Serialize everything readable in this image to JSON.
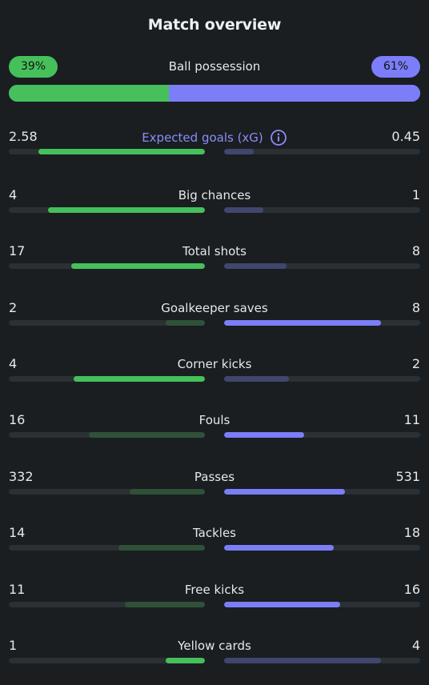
{
  "title": "Match overview",
  "possession": {
    "label": "Ball possession",
    "home_text": "39%",
    "away_text": "61%",
    "home_pct": 39,
    "away_pct": 61
  },
  "colors": {
    "home": "#46c05a",
    "away": "#7b7ef8"
  },
  "stats": [
    {
      "label": "Expected goals (xG)",
      "home": "2.58",
      "away": "0.45",
      "home_fill": 0.85,
      "away_fill": 0.15,
      "highlight": "home",
      "link": true,
      "icon": "info-icon"
    },
    {
      "label": "Big chances",
      "home": "4",
      "away": "1",
      "home_fill": 0.8,
      "away_fill": 0.2,
      "highlight": "home"
    },
    {
      "label": "Total shots",
      "home": "17",
      "away": "8",
      "home_fill": 0.68,
      "away_fill": 0.32,
      "highlight": "home"
    },
    {
      "label": "Goalkeeper saves",
      "home": "2",
      "away": "8",
      "home_fill": 0.2,
      "away_fill": 0.8,
      "highlight": "away"
    },
    {
      "label": "Corner kicks",
      "home": "4",
      "away": "2",
      "home_fill": 0.67,
      "away_fill": 0.33,
      "highlight": "home"
    },
    {
      "label": "Fouls",
      "home": "16",
      "away": "11",
      "home_fill": 0.59,
      "away_fill": 0.41,
      "highlight": "away"
    },
    {
      "label": "Passes",
      "home": "332",
      "away": "531",
      "home_fill": 0.385,
      "away_fill": 0.615,
      "highlight": "away"
    },
    {
      "label": "Tackles",
      "home": "14",
      "away": "18",
      "home_fill": 0.44,
      "away_fill": 0.56,
      "highlight": "away"
    },
    {
      "label": "Free kicks",
      "home": "11",
      "away": "16",
      "home_fill": 0.41,
      "away_fill": 0.59,
      "highlight": "away"
    },
    {
      "label": "Yellow cards",
      "home": "1",
      "away": "4",
      "home_fill": 0.2,
      "away_fill": 0.8,
      "highlight": "home"
    }
  ]
}
